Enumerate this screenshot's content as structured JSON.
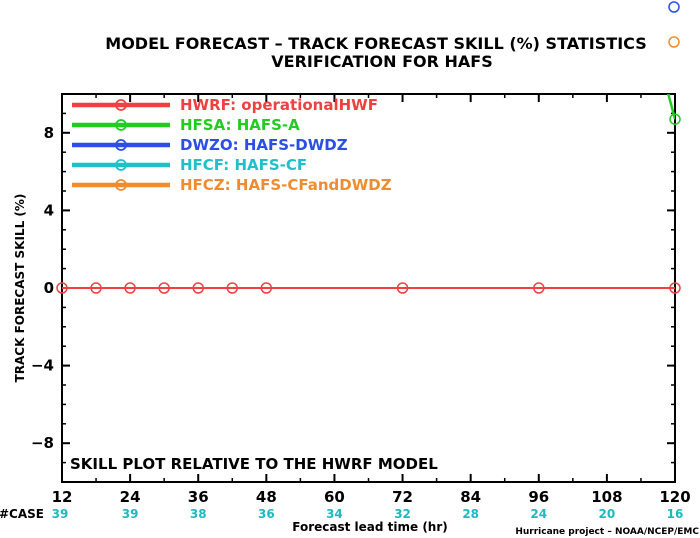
{
  "header": {
    "title_line1": "MODEL FORECAST – TRACK FORECAST SKILL (%) STATISTICS",
    "title_line2": "VERIFICATION FOR HAFS"
  },
  "annotation": "SKILL PLOT RELATIVE TO THE HWRF MODEL",
  "credit": "Hurricane project – NOAA/NCEP/EMC",
  "case_label": "#CASE",
  "colors": {
    "HWRF": "#f04040",
    "HFSA": "#22cc22",
    "DWZO": "#2b4ee6",
    "HFCF": "#20c0c8",
    "HFCZ": "#f08c30",
    "case": "#20b8c0"
  },
  "chart_data": {
    "type": "line",
    "title": "MODEL FORECAST – TRACK FORECAST SKILL (%) STATISTICS",
    "subtitle": "VERIFICATION FOR HAFS",
    "xlabel": "Forecast lead time (hr)",
    "ylabel": "TRACK FORECAST SKILL (%)",
    "xlim": [
      12,
      120
    ],
    "ylim": [
      -10,
      10
    ],
    "xticks": [
      12,
      24,
      36,
      48,
      60,
      72,
      84,
      96,
      108,
      120
    ],
    "yticks": [
      -8,
      -4,
      0,
      4,
      8
    ],
    "ytick_labels": [
      "−8",
      "−4",
      "0",
      "4",
      "8"
    ],
    "cases": [
      {
        "x": 12,
        "n": "39"
      },
      {
        "x": 24,
        "n": "39"
      },
      {
        "x": 36,
        "n": "38"
      },
      {
        "x": 48,
        "n": "36"
      },
      {
        "x": 60,
        "n": "34"
      },
      {
        "x": 72,
        "n": "32"
      },
      {
        "x": 84,
        "n": "28"
      },
      {
        "x": 96,
        "n": "24"
      },
      {
        "x": 108,
        "n": "20"
      },
      {
        "x": 120,
        "n": "16"
      }
    ],
    "legend_position": "top-left",
    "series": [
      {
        "key": "HWRF",
        "name": "HWRF: operationalHWF",
        "points": [
          [
            12,
            0
          ],
          [
            18,
            0
          ],
          [
            24,
            0
          ],
          [
            30,
            0
          ],
          [
            36,
            0
          ],
          [
            42,
            0
          ],
          [
            48,
            0
          ],
          [
            72,
            0
          ],
          [
            96,
            0
          ],
          [
            120,
            0
          ]
        ]
      },
      {
        "key": "HFSA",
        "name": "HFSA: HAFS-A",
        "points": [
          [
            120,
            8.7
          ]
        ],
        "offscale_start": [
          117,
          12
        ]
      },
      {
        "key": "DWZO",
        "name": "DWZO: HAFS-DWDZ",
        "points": []
      },
      {
        "key": "HFCF",
        "name": "HFCF: HAFS-CF",
        "points": []
      },
      {
        "key": "HFCZ",
        "name": "HFCZ: HAFS-CFandDWDZ",
        "points": []
      }
    ],
    "corner_markers": [
      {
        "key": "DWZO"
      },
      {
        "key": "HFCZ"
      }
    ]
  }
}
